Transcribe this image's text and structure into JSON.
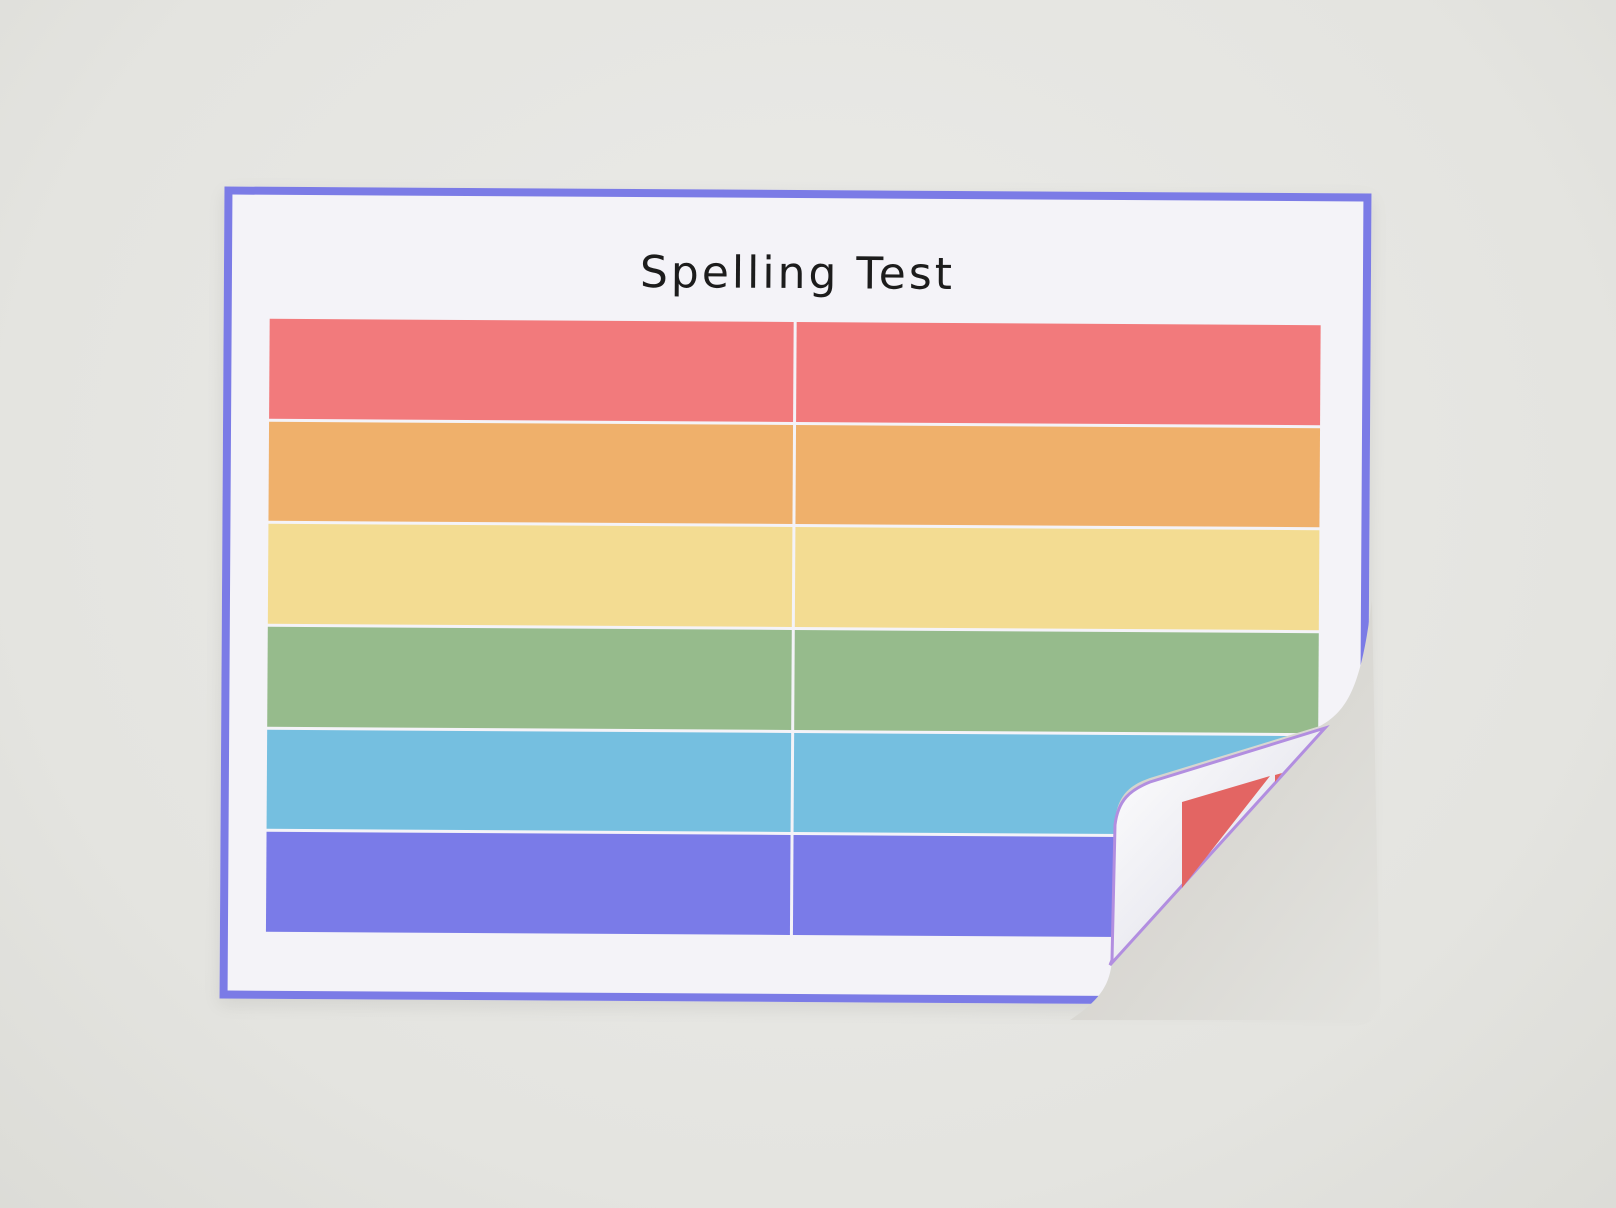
{
  "document": {
    "title": "Spelling Test",
    "border_color": "#7b7be6",
    "rows": [
      {
        "color": "#f27a7c"
      },
      {
        "color": "#efb06b"
      },
      {
        "color": "#f3dc92"
      },
      {
        "color": "#96bb8c"
      },
      {
        "color": "#75bfe0"
      },
      {
        "color": "#7a7be8"
      }
    ],
    "columns": 2
  }
}
